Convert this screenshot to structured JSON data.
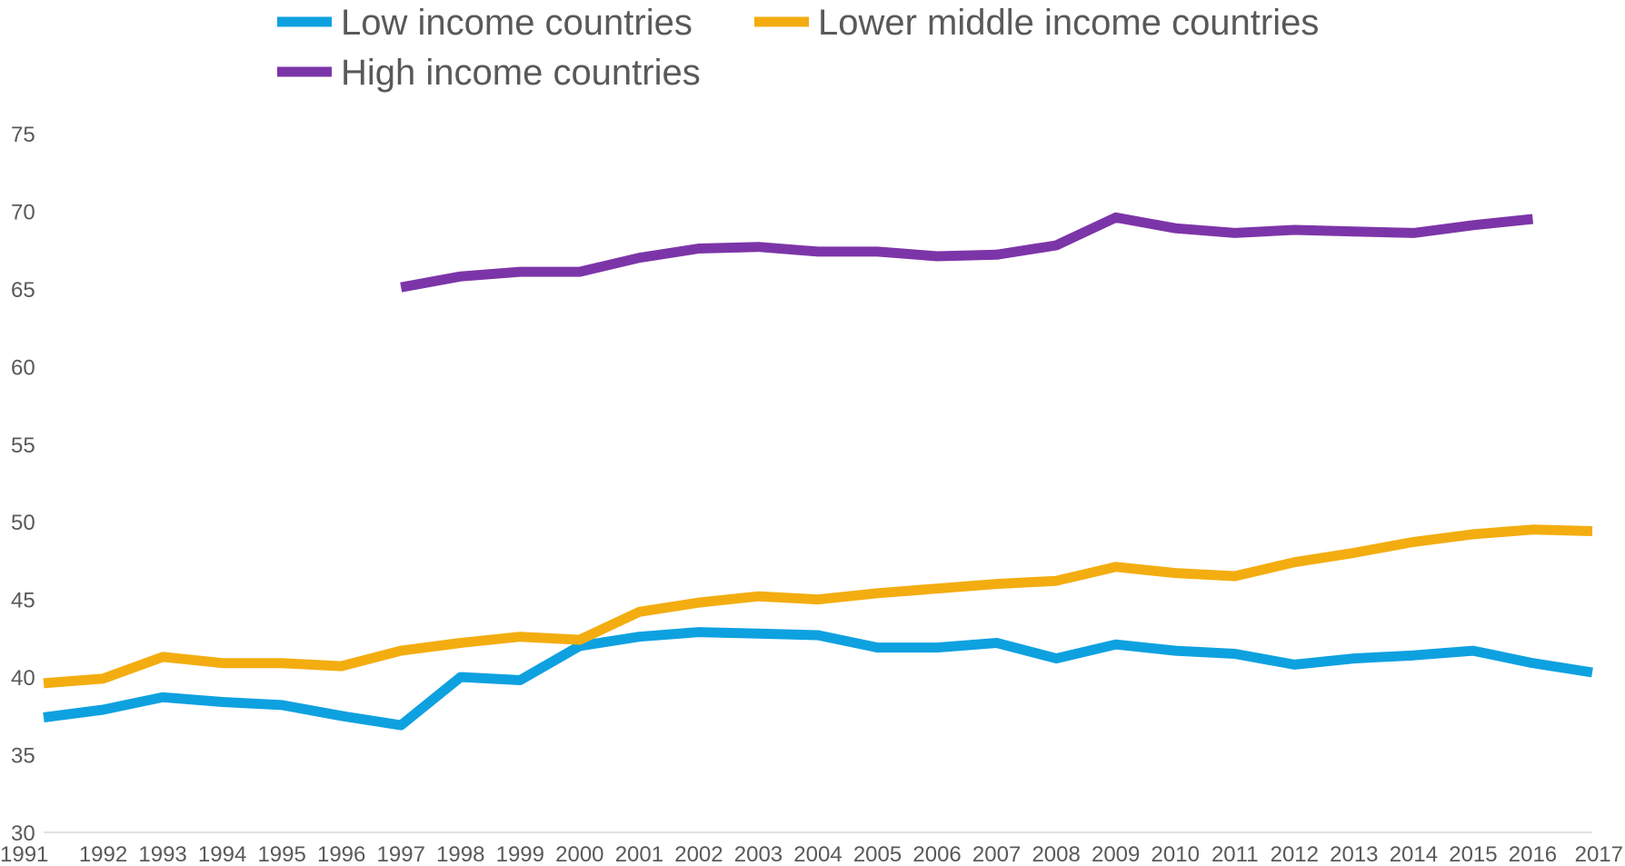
{
  "chart_data": {
    "type": "line",
    "title": "",
    "xlabel": "",
    "ylabel": "",
    "x": [
      "1991",
      "1992",
      "1993",
      "1994",
      "1995",
      "1996",
      "1997",
      "1998",
      "1999",
      "2000",
      "2001",
      "2002",
      "2003",
      "2004",
      "2005",
      "2006",
      "2007",
      "2008",
      "2009",
      "2010",
      "2011",
      "2012",
      "2013",
      "2014",
      "2015",
      "2016",
      "2017"
    ],
    "ylim": [
      30,
      75
    ],
    "yticks": [
      30,
      35,
      40,
      45,
      50,
      55,
      60,
      65,
      70,
      75
    ],
    "grid": false,
    "legend_position": "top",
    "series": [
      {
        "name": "Low income countries",
        "color": "#0ea1e0",
        "values": [
          37.4,
          37.9,
          38.7,
          38.4,
          38.2,
          37.5,
          36.9,
          40.0,
          39.8,
          42.0,
          42.6,
          42.9,
          42.8,
          42.7,
          41.9,
          41.9,
          42.2,
          41.2,
          42.1,
          41.7,
          41.5,
          40.8,
          41.2,
          41.4,
          41.7,
          40.9,
          40.3
        ]
      },
      {
        "name": "Lower middle income countries",
        "color": "#f3ad10",
        "values": [
          39.6,
          39.9,
          41.3,
          40.9,
          40.9,
          40.7,
          41.7,
          42.2,
          42.6,
          42.4,
          44.2,
          44.8,
          45.2,
          45.0,
          45.4,
          45.7,
          46.0,
          46.2,
          47.1,
          46.7,
          46.5,
          47.4,
          48.0,
          48.7,
          49.2,
          49.5,
          49.4
        ]
      },
      {
        "name": "High income countries",
        "color": "#7c35a8",
        "values": [
          null,
          null,
          null,
          null,
          null,
          null,
          65.1,
          65.8,
          66.1,
          66.1,
          67.0,
          67.6,
          67.7,
          67.4,
          67.4,
          67.1,
          67.2,
          67.8,
          69.6,
          68.9,
          68.6,
          68.8,
          68.7,
          68.6,
          69.1,
          69.5,
          null
        ]
      }
    ]
  }
}
